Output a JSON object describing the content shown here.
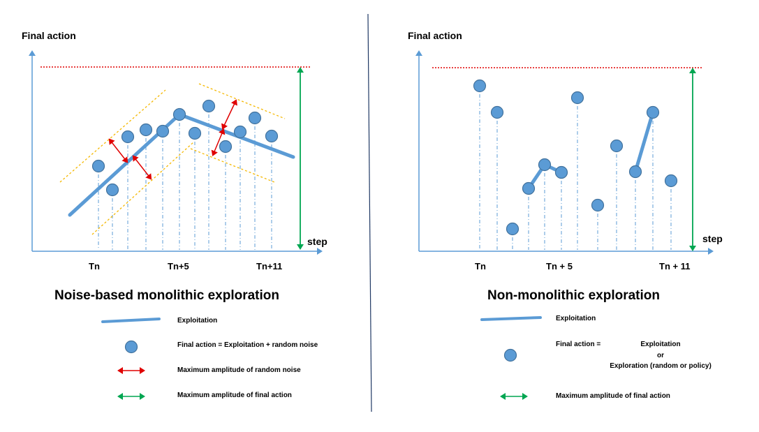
{
  "left": {
    "y_axis_label": "Final action",
    "x_axis_label": "step",
    "ticks": [
      "Tn",
      "Tn+5",
      "Tn+11"
    ],
    "title": "Noise-based monolithic exploration",
    "legend": {
      "exploitation": "Exploitation",
      "final_action": "Final action = Exploitation + random noise",
      "noise_amplitude": "Maximum amplitude of random noise",
      "final_amplitude": "Maximum amplitude of final action"
    }
  },
  "right": {
    "y_axis_label": "Final action",
    "x_axis_label": "step",
    "ticks": [
      "Tn",
      "Tn + 5",
      "Tn + 11"
    ],
    "title": "Non-monolithic exploration",
    "legend": {
      "exploitation": "Exploitation",
      "final_action_prefix": "Final action  =",
      "final_action_line1": "Exploitation",
      "final_action_line2": "or",
      "final_action_line3": "Exploration (random or policy)",
      "final_amplitude": "Maximum amplitude of final action"
    }
  },
  "colors": {
    "axis": "#5b9bd5",
    "exploitation_line": "#5b9bd5",
    "point_fill": "#5b9bd5",
    "point_stroke": "#41719c",
    "noise_arrow": "#e00000",
    "final_arrow": "#00a651",
    "max_line": "#e00000",
    "noise_band": "#f5b800",
    "divider": "#1f3864"
  }
}
